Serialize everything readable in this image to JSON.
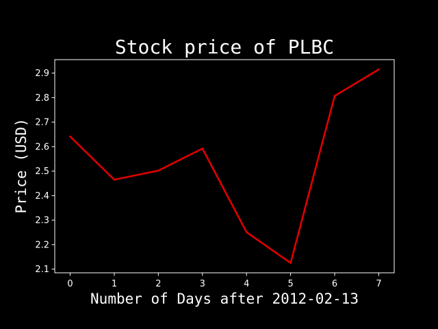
{
  "chart_data": {
    "type": "line",
    "title": "Stock price of PLBC",
    "xlabel": "Number of Days after 2012-02-13",
    "ylabel": "Price (USD)",
    "x": [
      0,
      1,
      2,
      3,
      4,
      5,
      6,
      7
    ],
    "series": [
      {
        "values": [
          2.641,
          2.465,
          2.502,
          2.592,
          2.251,
          2.125,
          2.807,
          2.915
        ],
        "color": "#e00000"
      }
    ],
    "xticks": [
      0,
      1,
      2,
      3,
      4,
      5,
      6,
      7
    ],
    "yticks": [
      2.1,
      2.2,
      2.3,
      2.4,
      2.5,
      2.6,
      2.7,
      2.8,
      2.9
    ],
    "xlim": [
      -0.35,
      7.35
    ],
    "ylim": [
      2.085,
      2.955
    ],
    "grid": false,
    "legend": "none",
    "background": "#000000",
    "foreground": "#ffffff"
  }
}
